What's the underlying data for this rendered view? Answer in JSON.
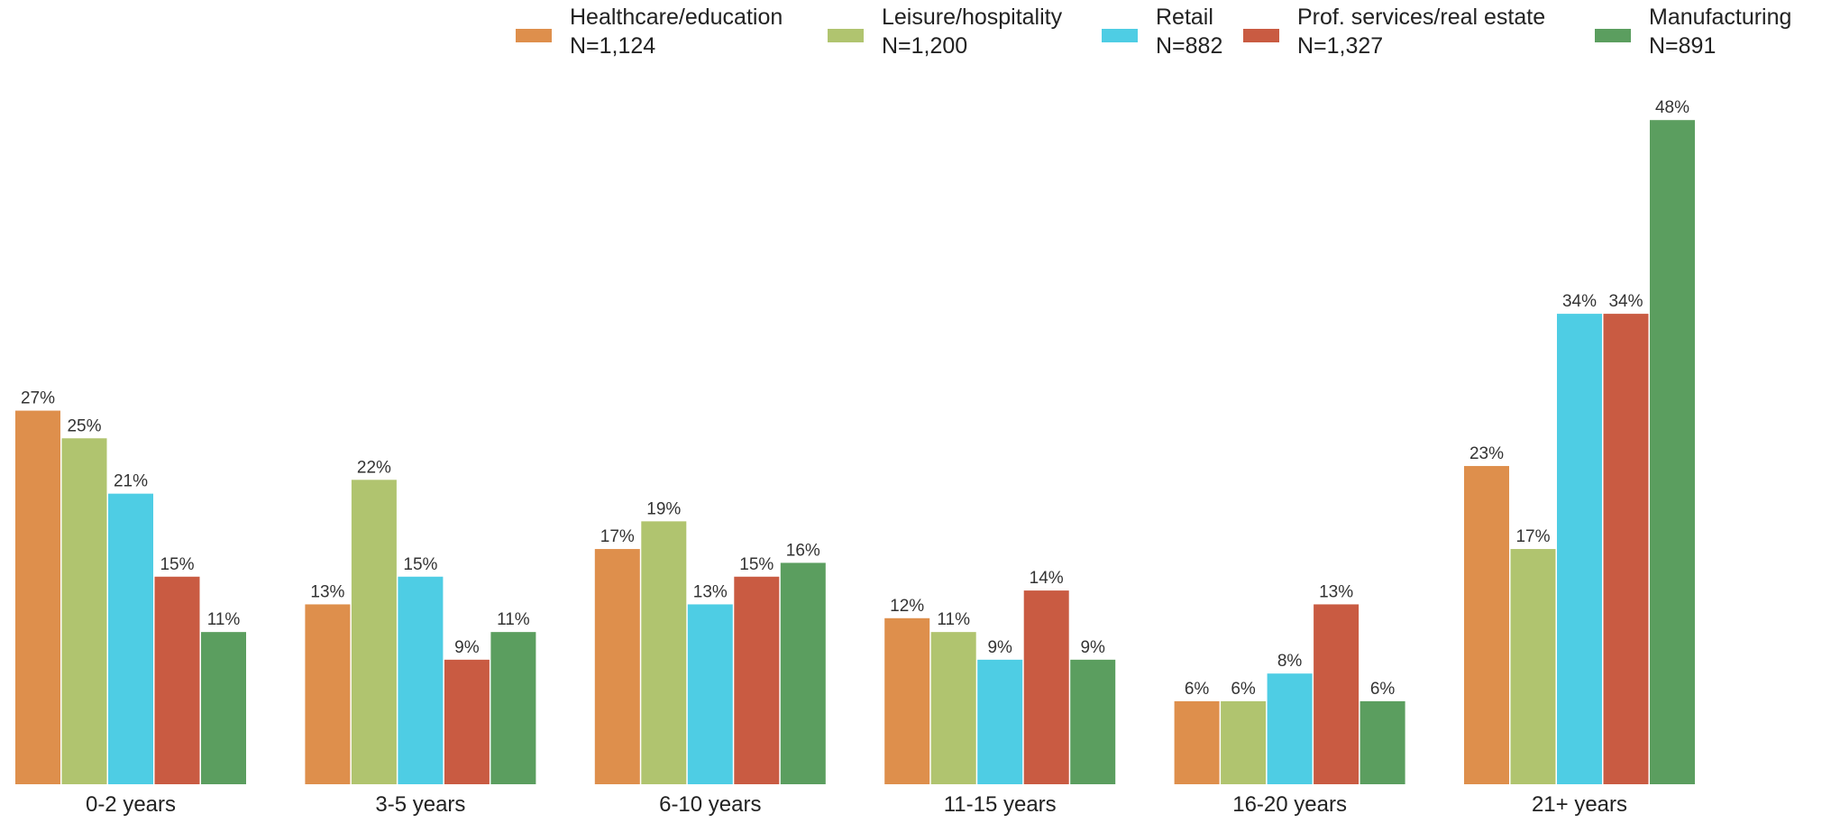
{
  "chart_data": {
    "type": "bar",
    "categories": [
      "0-2 years",
      "3-5 years",
      "6-10 years",
      "11-15 years",
      "16-20 years",
      "21+ years"
    ],
    "series": [
      {
        "name": "Healthcare/education",
        "sample": "N=1,124",
        "color": "#DE8F4C",
        "values": [
          27,
          13,
          17,
          12,
          6,
          23
        ]
      },
      {
        "name": "Leisure/hospitality",
        "sample": "N=1,200",
        "color": "#B0C46F",
        "values": [
          25,
          22,
          19,
          11,
          6,
          17
        ]
      },
      {
        "name": "Retail",
        "sample": "N=882",
        "color": "#4ECDE4",
        "values": [
          21,
          15,
          13,
          9,
          8,
          34
        ]
      },
      {
        "name": "Prof. services/real estate",
        "sample": "N=1,327",
        "color": "#C95B42",
        "values": [
          15,
          9,
          15,
          14,
          13,
          34
        ]
      },
      {
        "name": "Manufacturing",
        "sample": "N=891",
        "color": "#5B9E5F",
        "values": [
          11,
          11,
          16,
          9,
          6,
          48
        ]
      }
    ],
    "value_suffix": "%",
    "ylim": [
      0,
      50
    ],
    "grid": false,
    "legend_position": "top-right",
    "title": "",
    "xlabel": "",
    "ylabel": ""
  }
}
